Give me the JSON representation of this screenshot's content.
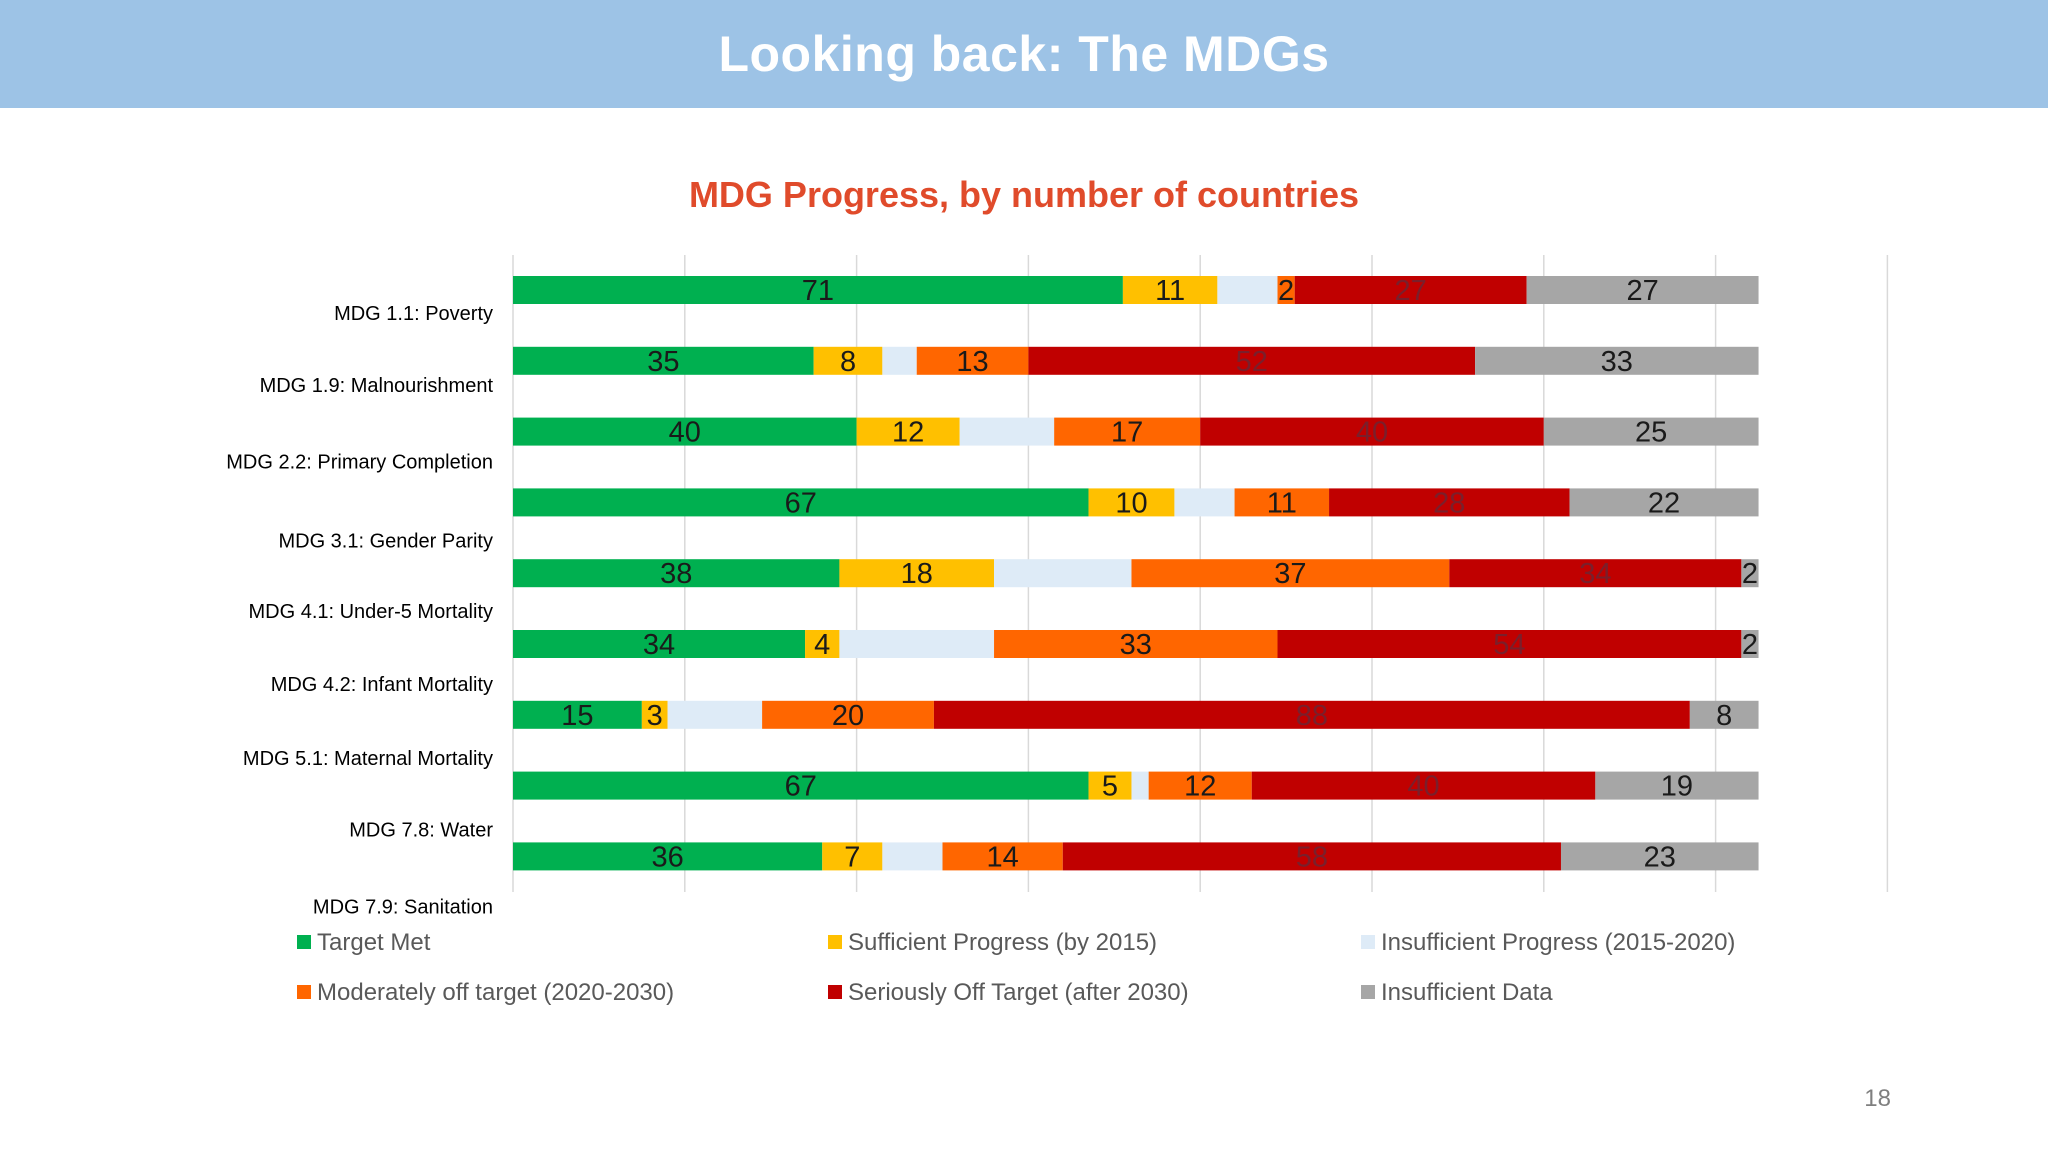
{
  "slide": {
    "title": "Looking back: The MDGs",
    "page_number": "18",
    "title_bar_color": "#9dc3e6"
  },
  "chart_data": {
    "type": "bar",
    "orientation": "horizontal",
    "stacked": true,
    "title": "MDG Progress, by number of countries",
    "title_color": "#e04b2b",
    "categories": [
      "MDG 1.1: Poverty",
      "MDG 1.9: Malnourishment",
      "MDG 2.2: Primary Completion",
      "MDG 3.1: Gender Parity",
      "MDG 4.1: Under-5 Mortality",
      "MDG 4.2: Infant Mortality",
      "MDG 5.1: Maternal Mortality",
      "MDG 7.8: Water",
      "MDG 7.9: Sanitation"
    ],
    "series": [
      {
        "name": "Target Met",
        "color": "#00b050",
        "values": [
          71,
          35,
          40,
          67,
          38,
          34,
          15,
          67,
          36
        ]
      },
      {
        "name": "Sufficient Progress (by 2015)",
        "color": "#ffc000",
        "values": [
          11,
          8,
          12,
          10,
          18,
          4,
          3,
          5,
          7
        ]
      },
      {
        "name": "Insufficient Progress (2015-2020)",
        "color": "#deebf7",
        "values": [
          7,
          4,
          11,
          7,
          16,
          18,
          11,
          2,
          7
        ]
      },
      {
        "name": "Moderately off target (2020-2030)",
        "color": "#ff6600",
        "values": [
          2,
          13,
          17,
          11,
          37,
          33,
          20,
          12,
          14
        ]
      },
      {
        "name": "Seriously Off Target (after 2030)",
        "color": "#c00000",
        "values": [
          27,
          52,
          40,
          28,
          34,
          54,
          88,
          40,
          58
        ]
      },
      {
        "name": "Insufficient Data",
        "color": "#a6a6a6",
        "values": [
          27,
          33,
          25,
          22,
          2,
          2,
          8,
          19,
          23
        ]
      }
    ],
    "data_labels_hidden_series": [
      "Insufficient Progress (2015-2020)"
    ],
    "xlim": [
      0,
      160
    ],
    "x_gridlines": [
      0,
      20,
      40,
      60,
      80,
      100,
      120,
      140,
      160
    ],
    "x_tick_labels_shown": false,
    "grid": true,
    "legend_position": "bottom"
  }
}
